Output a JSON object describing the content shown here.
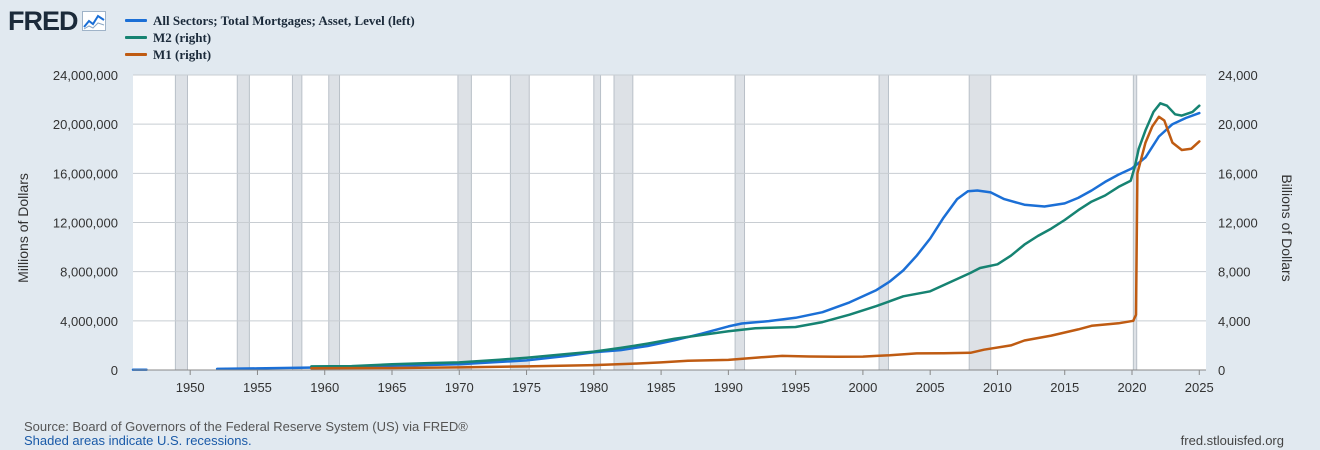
{
  "logo": {
    "text": "FRED",
    "icon": "line-chart-icon"
  },
  "colors": {
    "background": "#e1e9f0",
    "plot_bg": "#ffffff",
    "grid": "#c8cdd2",
    "recession": "#dde1e6",
    "mortgages": "#1b6fd6",
    "m2": "#168372",
    "m1": "#bf5b12"
  },
  "footer": {
    "source": "Source: Board of Governors of the Federal Reserve System (US) via FRED®",
    "recession_note": "Shaded areas indicate U.S. recessions.",
    "site": "fred.stlouisfed.org"
  },
  "chart_data": {
    "type": "line",
    "title": "",
    "ylabel_left": "Millions of Dollars",
    "ylabel_right": "Billions of Dollars",
    "x_range": [
      1945.75,
      2025.5
    ],
    "ylim_left": [
      0,
      24000000
    ],
    "ylim_right": [
      0,
      24000
    ],
    "x_ticks": [
      1950,
      1955,
      1960,
      1965,
      1970,
      1975,
      1980,
      1985,
      1990,
      1995,
      2000,
      2005,
      2010,
      2015,
      2020,
      2025
    ],
    "x_tick_labels": [
      "1950",
      "1955",
      "1960",
      "1965",
      "1970",
      "1975",
      "1980",
      "1985",
      "1990",
      "1995",
      "2000",
      "2005",
      "2010",
      "2015",
      "2020",
      "2025"
    ],
    "y_left_ticks": [
      0,
      4000000,
      8000000,
      12000000,
      16000000,
      20000000,
      24000000
    ],
    "y_left_tick_labels": [
      "0",
      "4,000,000",
      "8,000,000",
      "12,000,000",
      "16,000,000",
      "20,000,000",
      "24,000,000"
    ],
    "y_right_ticks": [
      0,
      4000,
      8000,
      12000,
      16000,
      20000,
      24000
    ],
    "y_right_tick_labels": [
      "0",
      "4,000",
      "8,000",
      "12,000",
      "16,000",
      "20,000",
      "24,000"
    ],
    "grid": true,
    "legend_position": "top-left",
    "recessions": [
      [
        1948.9,
        1949.8
      ],
      [
        1953.5,
        1954.4
      ],
      [
        1957.6,
        1958.3
      ],
      [
        1960.3,
        1961.1
      ],
      [
        1969.9,
        1970.9
      ],
      [
        1973.8,
        1975.2
      ],
      [
        1980.0,
        1980.5
      ],
      [
        1981.5,
        1982.9
      ],
      [
        1990.5,
        1991.2
      ],
      [
        2001.2,
        2001.9
      ],
      [
        2007.9,
        2009.5
      ],
      [
        2020.1,
        2020.35
      ]
    ],
    "series": [
      {
        "name": "All Sectors; Total Mortgages; Asset, Level (left)",
        "axis": "left",
        "color": "#1b6fd6",
        "segments": [
          [
            [
              1945.75,
              20000
            ],
            [
              1946.75,
              25000
            ]
          ],
          [
            [
              1952,
              90000
            ],
            [
              1955,
              130000
            ],
            [
              1960,
              210000
            ],
            [
              1965,
              340000
            ],
            [
              1970,
              470000
            ],
            [
              1975,
              780000
            ],
            [
              1978,
              1150000
            ],
            [
              1980,
              1450000
            ],
            [
              1982,
              1620000
            ],
            [
              1984,
              1950000
            ],
            [
              1986,
              2420000
            ],
            [
              1988,
              2950000
            ],
            [
              1990,
              3550000
            ],
            [
              1991,
              3780000
            ],
            [
              1993,
              3980000
            ],
            [
              1995,
              4250000
            ],
            [
              1997,
              4700000
            ],
            [
              1999,
              5500000
            ],
            [
              2001,
              6500000
            ],
            [
              2002,
              7200000
            ],
            [
              2003,
              8100000
            ],
            [
              2004,
              9300000
            ],
            [
              2005,
              10700000
            ],
            [
              2006,
              12400000
            ],
            [
              2007,
              13900000
            ],
            [
              2007.8,
              14550000
            ],
            [
              2008.5,
              14600000
            ],
            [
              2009.5,
              14450000
            ],
            [
              2010.5,
              13900000
            ],
            [
              2012,
              13450000
            ],
            [
              2013.5,
              13300000
            ],
            [
              2015,
              13550000
            ],
            [
              2016,
              14000000
            ],
            [
              2017,
              14600000
            ],
            [
              2018,
              15300000
            ],
            [
              2019,
              15900000
            ],
            [
              2020,
              16400000
            ],
            [
              2021,
              17300000
            ],
            [
              2022,
              19000000
            ],
            [
              2023,
              20000000
            ],
            [
              2024,
              20500000
            ],
            [
              2025,
              20900000
            ]
          ]
        ]
      },
      {
        "name": "M2 (right)",
        "axis": "right",
        "color": "#168372",
        "segments": [
          [
            [
              1959,
              290
            ],
            [
              1962,
              320
            ],
            [
              1965,
              460
            ],
            [
              1968,
              570
            ],
            [
              1970,
              620
            ],
            [
              1973,
              840
            ],
            [
              1975,
              1000
            ],
            [
              1978,
              1300
            ],
            [
              1980,
              1500
            ],
            [
              1982,
              1800
            ],
            [
              1984,
              2150
            ],
            [
              1986,
              2550
            ],
            [
              1988,
              2850
            ],
            [
              1990,
              3150
            ],
            [
              1992,
              3400
            ],
            [
              1995,
              3500
            ],
            [
              1997,
              3900
            ],
            [
              1999,
              4500
            ],
            [
              2001,
              5200
            ],
            [
              2003,
              6000
            ],
            [
              2005,
              6400
            ],
            [
              2007,
              7400
            ],
            [
              2008,
              7900
            ],
            [
              2008.7,
              8300
            ],
            [
              2010,
              8600
            ],
            [
              2011,
              9300
            ],
            [
              2012,
              10200
            ],
            [
              2013,
              10900
            ],
            [
              2014,
              11500
            ],
            [
              2015,
              12200
            ],
            [
              2016,
              13000
            ],
            [
              2017,
              13700
            ],
            [
              2018,
              14200
            ],
            [
              2019,
              14900
            ],
            [
              2019.9,
              15400
            ],
            [
              2020.2,
              16500
            ],
            [
              2020.5,
              18000
            ],
            [
              2021,
              19500
            ],
            [
              2021.6,
              21000
            ],
            [
              2022.1,
              21700
            ],
            [
              2022.6,
              21500
            ],
            [
              2023.2,
              20800
            ],
            [
              2023.7,
              20700
            ],
            [
              2024.5,
              21000
            ],
            [
              2025,
              21500
            ]
          ]
        ]
      },
      {
        "name": "M1 (right)",
        "axis": "right",
        "color": "#bf5b12",
        "segments": [
          [
            [
              1959,
              140
            ],
            [
              1965,
              165
            ],
            [
              1970,
              210
            ],
            [
              1975,
              290
            ],
            [
              1980,
              400
            ],
            [
              1983,
              520
            ],
            [
              1985,
              620
            ],
            [
              1987,
              750
            ],
            [
              1990,
              820
            ],
            [
              1992,
              1000
            ],
            [
              1994,
              1150
            ],
            [
              1996,
              1100
            ],
            [
              1998,
              1080
            ],
            [
              2000,
              1090
            ],
            [
              2001,
              1150
            ],
            [
              2002,
              1200
            ],
            [
              2004,
              1350
            ],
            [
              2006,
              1370
            ],
            [
              2008,
              1400
            ],
            [
              2009,
              1650
            ],
            [
              2011,
              2000
            ],
            [
              2012,
              2400
            ],
            [
              2014,
              2800
            ],
            [
              2016,
              3300
            ],
            [
              2017,
              3600
            ],
            [
              2018,
              3700
            ],
            [
              2019,
              3800
            ],
            [
              2020.1,
              4000
            ],
            [
              2020.3,
              4500
            ],
            [
              2020.4,
              16000
            ],
            [
              2021,
              18500
            ],
            [
              2021.5,
              19800
            ],
            [
              2022,
              20600
            ],
            [
              2022.4,
              20300
            ],
            [
              2023,
              18500
            ],
            [
              2023.7,
              17900
            ],
            [
              2024.4,
              18000
            ],
            [
              2025,
              18600
            ]
          ]
        ]
      }
    ]
  }
}
